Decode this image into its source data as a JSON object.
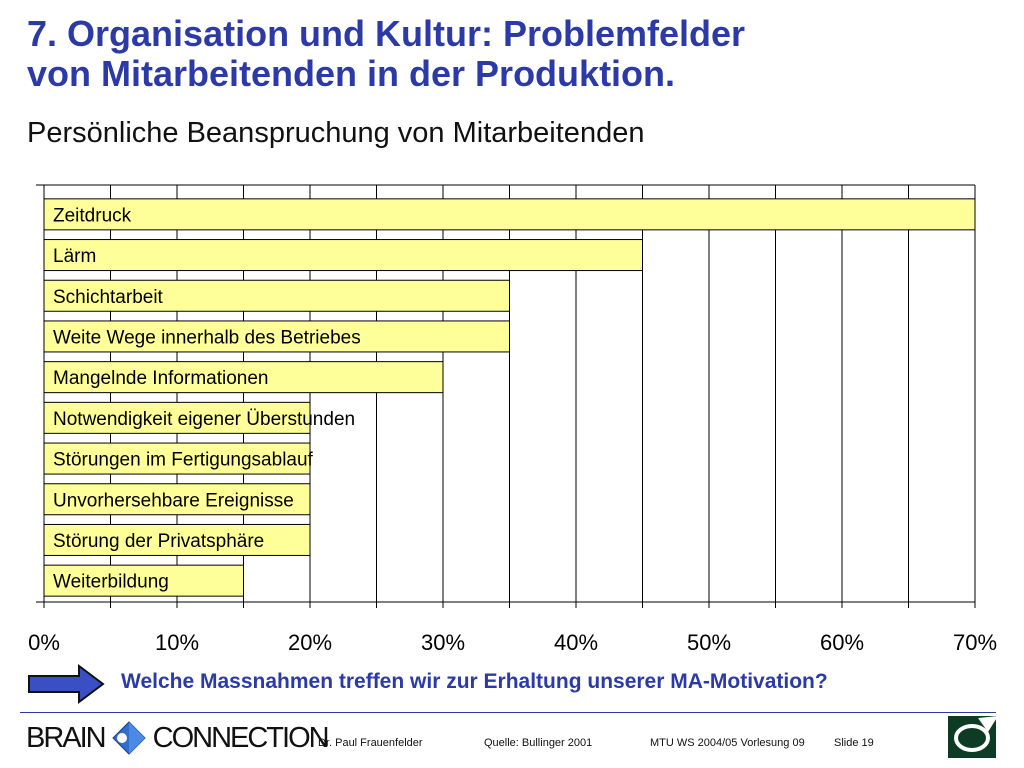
{
  "slide": {
    "title_line1": "7. Organisation und Kultur: Problemfelder",
    "title_line2": "von Mitarbeitenden in der Produktion.",
    "subtitle": "Persönliche Beanspruchung von Mitarbeitenden",
    "question": "Welche Massnahmen treffen wir zur Erhaltung unserer MA-Motivation?"
  },
  "footer": {
    "brand_left": "BRAIN",
    "brand_right": "CONNECTION",
    "author": "Dr. Paul Frauenfelder",
    "source": "Quelle: Bullinger 2001",
    "course": "MTU WS 2004/05 Vorlesung 09",
    "slide_number": "Slide 19"
  },
  "colors": {
    "title": "#2b3aa6",
    "bar_fill": "#ffff99",
    "bar_stroke": "#000000",
    "arrow_fill": "#3b4fc4"
  },
  "icons": {
    "arrow": "arrow-right-icon",
    "brand": "puzzle-diamond-icon",
    "corner": "circle-arrow-logo-icon"
  },
  "chart_data": {
    "type": "bar",
    "orientation": "horizontal",
    "categories": [
      "Zeitdruck",
      "Lärm",
      "Schichtarbeit",
      "Weite Wege innerhalb des Betriebes",
      "Mangelnde Informationen",
      "Notwendigkeit eigener Überstunden",
      "Störungen im Fertigungsablauf",
      "Unvorhersehbare Ereignisse",
      "Störung der Privatsphäre",
      "Weiterbildung"
    ],
    "values": [
      70,
      45,
      35,
      35,
      30,
      20,
      20,
      20,
      20,
      15
    ],
    "value_unit": "%",
    "xlim": [
      0,
      70
    ],
    "x_ticks": [
      "0%",
      "10%",
      "20%",
      "30%",
      "40%",
      "50%",
      "60%",
      "70%"
    ],
    "minor_grid_step": 5,
    "grid": true,
    "legend": "none"
  }
}
